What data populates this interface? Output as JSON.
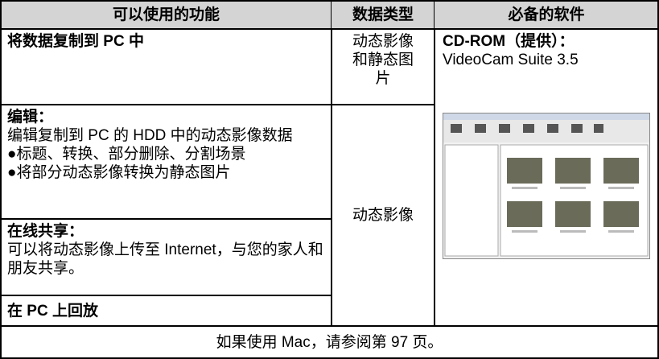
{
  "table": {
    "header": [
      "可以使用的功能",
      "数据类型",
      "必备的软件"
    ],
    "functions": [
      {
        "title": "将数据复制到 PC 中"
      },
      {
        "title": "编辑：",
        "description": "编辑复制到 PC 的 HDD 中的动态影像数据",
        "bullets": [
          "●标题、转换、部分删除、分割场景",
          "●将部分动态影像转换为静态图片"
        ]
      },
      {
        "title": "在线共享：",
        "description": "可以将动态影像上传至 Internet，与您的家人和朋友共享。"
      },
      {
        "title": "在 PC 上回放"
      }
    ],
    "data_types": [
      "动态影像和静态图片",
      "动态影像"
    ],
    "software": {
      "title": "CD-ROM（提供）：",
      "name": "VideoCam Suite 3.5"
    }
  },
  "footer": "如果使用 Mac，请参阅第 97 页。"
}
